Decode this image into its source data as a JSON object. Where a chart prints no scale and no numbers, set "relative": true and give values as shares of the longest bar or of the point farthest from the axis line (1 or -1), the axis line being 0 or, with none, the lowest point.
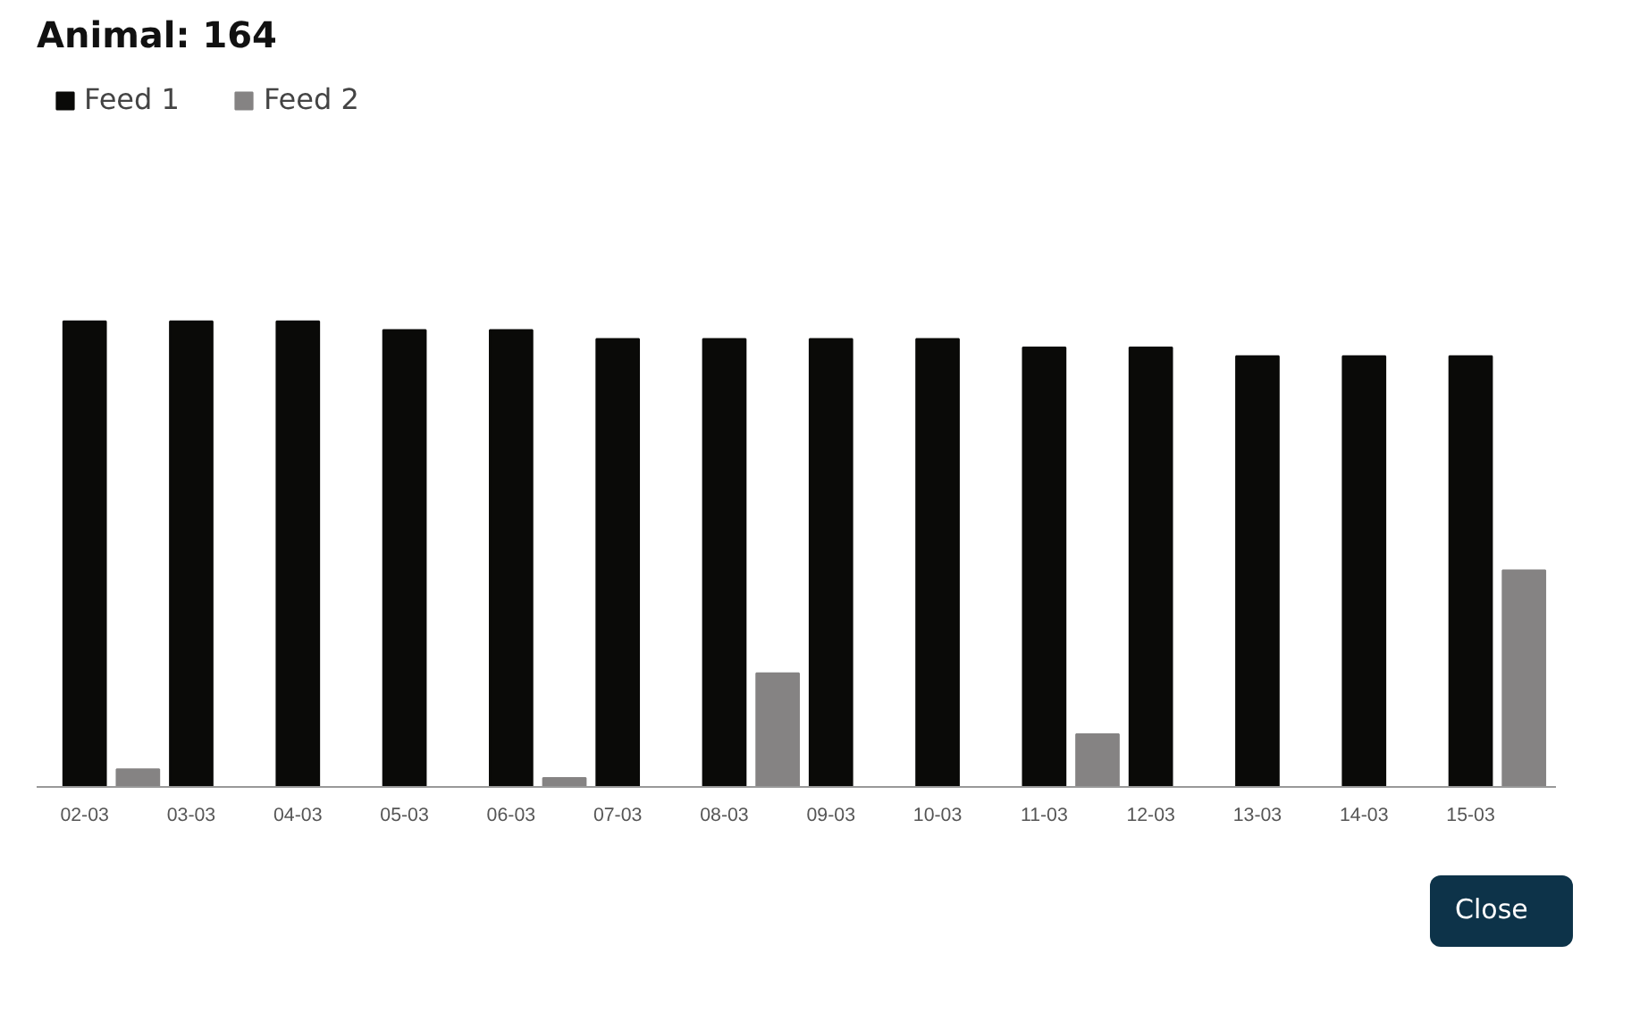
{
  "chart_data": {
    "type": "bar",
    "title": "Animal: 164",
    "relative": true,
    "categories": [
      "02-03",
      "03-03",
      "04-03",
      "05-03",
      "06-03",
      "07-03",
      "08-03",
      "09-03",
      "10-03",
      "11-03",
      "12-03",
      "13-03",
      "14-03",
      "15-03"
    ],
    "series": [
      {
        "name": "Feed 1",
        "color": "#0a0a08",
        "values": [
          1,
          1,
          1,
          0.981,
          0.981,
          0.962,
          0.962,
          0.962,
          0.962,
          0.944,
          0.944,
          0.925,
          0.925,
          0.925
        ]
      },
      {
        "name": "Feed 2",
        "color": "#858383",
        "values": [
          0.038,
          0,
          0,
          0,
          0.019,
          0,
          0.244,
          0,
          0,
          0.113,
          0,
          0,
          0,
          0.465
        ]
      }
    ],
    "legend": "top left",
    "grid": false,
    "annotations": [
      "Close"
    ]
  }
}
